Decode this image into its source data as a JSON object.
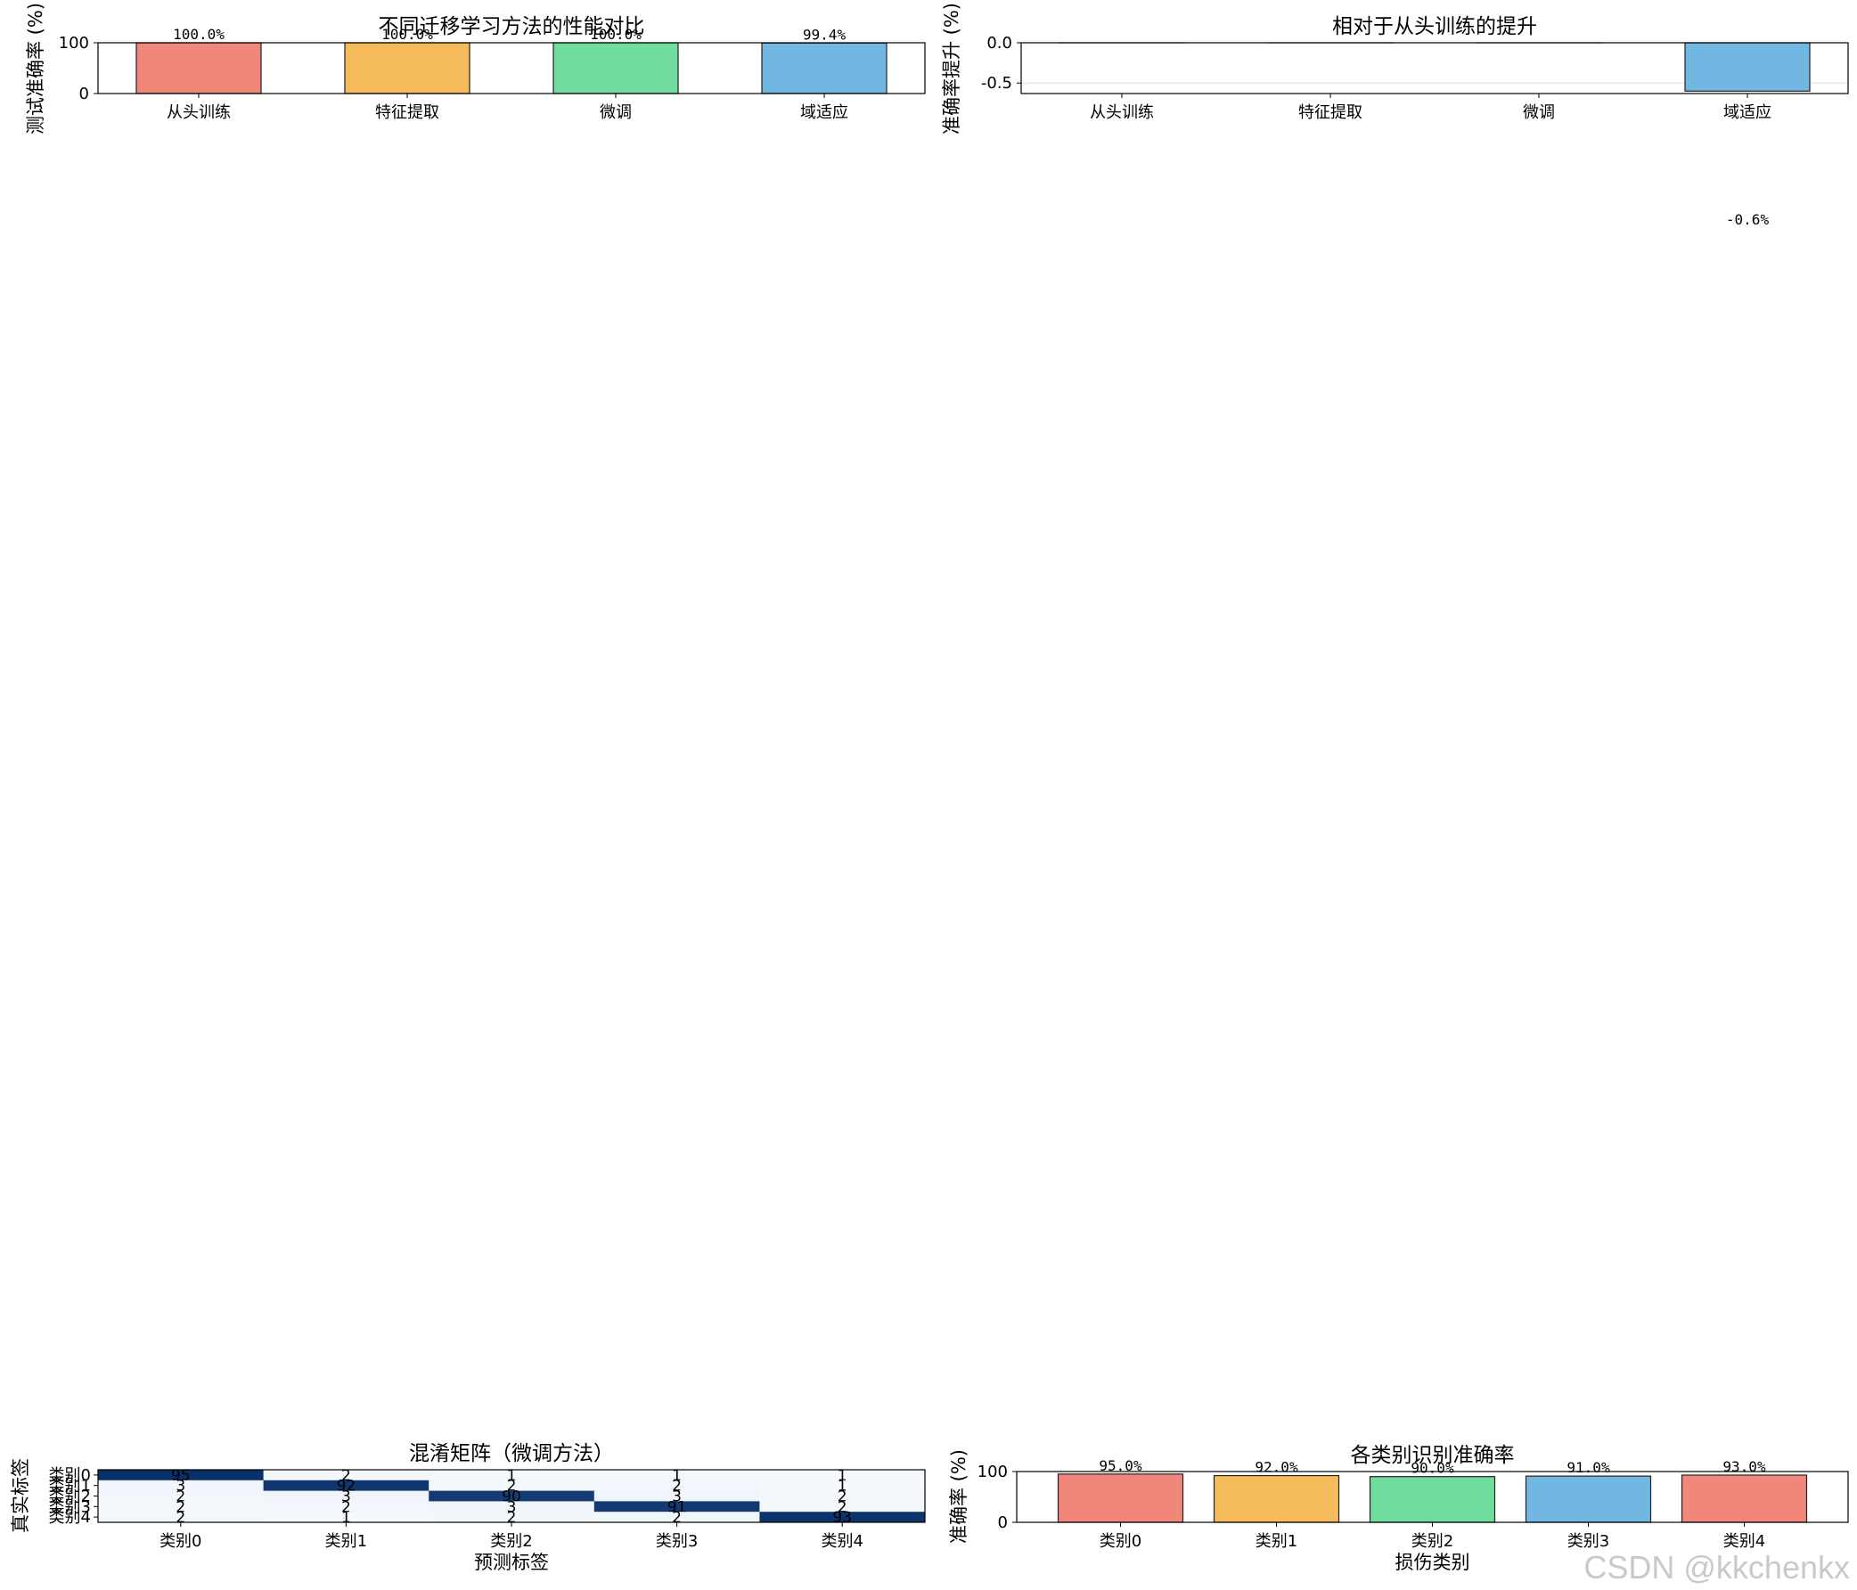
{
  "watermark": "CSDN @kkchenkx",
  "chart_data": [
    {
      "type": "bar",
      "title": "不同迁移学习方法的性能对比",
      "xlabel": "",
      "ylabel": "测试准确率 (%)",
      "categories": [
        "从头训练",
        "特征提取",
        "微调",
        "域适应"
      ],
      "values": [
        100.0,
        100.0,
        100.0,
        99.4
      ],
      "data_labels": [
        "100.0%",
        "100.0%",
        "100.0%",
        "99.4%"
      ],
      "colors": [
        "#f1877a",
        "#f6bb5a",
        "#70dc9e",
        "#72b6e2"
      ],
      "ylim": [
        0,
        100
      ],
      "yticks": [
        "0",
        "100"
      ],
      "grid": false
    },
    {
      "type": "bar",
      "title": "相对于从头训练的提升",
      "xlabel": "",
      "ylabel": "准确率提升 (%)",
      "categories": [
        "从头训练",
        "特征提取",
        "微调",
        "域适应"
      ],
      "values": [
        0.0,
        0.0,
        0.0,
        -0.6
      ],
      "data_labels": [
        "",
        "",
        "",
        "-0.6%"
      ],
      "colors": [
        "#f1877a",
        "#f6bb5a",
        "#70dc9e",
        "#72b6e2"
      ],
      "ylim": [
        -0.63,
        0.0
      ],
      "yticks": [
        "0.0",
        "-0.5"
      ],
      "grid": true
    },
    {
      "type": "heatmap",
      "title": "混淆矩阵（微调方法）",
      "xlabel": "预测标签",
      "ylabel": "真实标签",
      "x_categories": [
        "类别0",
        "类别1",
        "类别2",
        "类别3",
        "类别4"
      ],
      "y_categories": [
        "类别0",
        "类别1",
        "类别2",
        "类别3",
        "类别4"
      ],
      "matrix": [
        [
          95,
          2,
          1,
          1,
          1
        ],
        [
          3,
          92,
          2,
          2,
          1
        ],
        [
          2,
          3,
          90,
          3,
          2
        ],
        [
          2,
          2,
          3,
          91,
          2
        ],
        [
          2,
          1,
          2,
          2,
          93
        ]
      ],
      "colormap": "Blues"
    },
    {
      "type": "bar",
      "title": "各类别识别准确率",
      "xlabel": "损伤类别",
      "ylabel": "准确率 (%)",
      "categories": [
        "类别0",
        "类别1",
        "类别2",
        "类别3",
        "类别4"
      ],
      "values": [
        95.0,
        92.0,
        90.0,
        91.0,
        93.0
      ],
      "data_labels": [
        "95.0%",
        "92.0%",
        "90.0%",
        "91.0%",
        "93.0%"
      ],
      "colors": [
        "#f1877a",
        "#f6bb5a",
        "#70dc9e",
        "#72b6e2",
        "#f1877a"
      ],
      "ylim": [
        0,
        100
      ],
      "yticks": [
        "0",
        "100"
      ],
      "grid": false
    }
  ]
}
